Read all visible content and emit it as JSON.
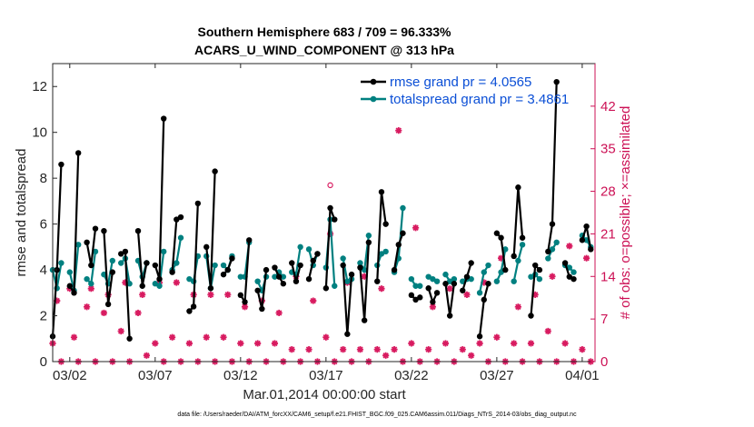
{
  "chart_data": {
    "type": "line",
    "title": "Southern Hemisphere 683 / 709 = 96.333%",
    "subtitle": "ACARS_U_WIND_COMPONENT @ 313 hPa",
    "xlabel": "Mar.01,2014 00:00:00 start",
    "ylabel": "rmse and totalspread",
    "ylabel_right": "# of obs: o=possible; ×=assimilated",
    "footnote": "data file: /Users/raeder/DAI/ATM_forcXX/CAM6_setup/f.e21.FHIST_BGC.f09_025.CAM6assim.011/Diags_NTrS_2014-03/obs_diag_output.nc",
    "xlim": [
      0,
      31.75
    ],
    "ylim": [
      0,
      13
    ],
    "ylim_right": [
      0,
      49
    ],
    "x_ticks": [
      1,
      6,
      11,
      16,
      21,
      26,
      31
    ],
    "x_tick_labels": [
      "03/02",
      "03/07",
      "03/12",
      "03/17",
      "03/22",
      "03/27",
      "04/01"
    ],
    "y_ticks": [
      0,
      2,
      4,
      6,
      8,
      10,
      12
    ],
    "y_ticks_right": [
      0,
      7,
      14,
      21,
      28,
      35,
      42
    ],
    "legend_position": "top-right",
    "colors": {
      "rmse": "#000000",
      "spread": "#008080",
      "obs": "#d81b60"
    },
    "series": [
      {
        "name": "rmse grand pr = 4.0565",
        "segments": [
          {
            "x": [
              0.0,
              0.25,
              0.5
            ],
            "y": [
              1.1,
              4.0,
              8.6
            ]
          },
          {
            "x": [
              1.0,
              1.25,
              1.5
            ],
            "y": [
              3.3,
              3.0,
              9.1
            ]
          },
          {
            "x": [
              2.0,
              2.25,
              2.5
            ],
            "y": [
              5.2,
              4.2,
              5.8
            ]
          },
          {
            "x": [
              3.0,
              3.25,
              3.5
            ],
            "y": [
              5.7,
              2.5,
              3.9
            ]
          },
          {
            "x": [
              4.0,
              4.25,
              4.5
            ],
            "y": [
              4.7,
              4.8,
              1.0
            ]
          },
          {
            "x": [
              5.0,
              5.25,
              5.5
            ],
            "y": [
              5.7,
              3.3,
              4.3
            ]
          },
          {
            "x": [
              6.0,
              6.25,
              6.5
            ],
            "y": [
              4.2,
              3.6,
              10.6
            ]
          },
          {
            "x": [
              7.0,
              7.25,
              7.5
            ],
            "y": [
              3.9,
              6.2,
              6.3
            ]
          },
          {
            "x": [
              8.0,
              8.25,
              8.5
            ],
            "y": [
              2.2,
              2.4,
              6.9
            ]
          },
          {
            "x": [
              9.0,
              9.25,
              9.5
            ],
            "y": [
              5.0,
              3.2,
              8.3
            ]
          },
          {
            "x": [
              10.0,
              10.25,
              10.5
            ],
            "y": [
              3.8,
              4.0,
              4.5
            ]
          },
          {
            "x": [
              11.0,
              11.25,
              11.5
            ],
            "y": [
              2.9,
              2.6,
              5.3
            ]
          },
          {
            "x": [
              12.0,
              12.25,
              12.5
            ],
            "y": [
              3.1,
              2.3,
              4.0
            ]
          },
          {
            "x": [
              13.0,
              13.25,
              13.5
            ],
            "y": [
              4.1,
              3.7,
              3.4
            ]
          },
          {
            "x": [
              14.0,
              14.25,
              14.5
            ],
            "y": [
              4.3,
              3.5,
              4.2
            ]
          },
          {
            "x": [
              15.0,
              15.25,
              15.5
            ],
            "y": [
              3.6,
              4.4,
              4.7
            ]
          },
          {
            "x": [
              16.0,
              16.25,
              16.5
            ],
            "y": [
              3.2,
              6.7,
              6.2
            ]
          },
          {
            "x": [
              17.0,
              17.25,
              17.5
            ],
            "y": [
              4.2,
              1.2,
              3.8
            ]
          },
          {
            "x": [
              18.0,
              18.25,
              18.5
            ],
            "y": [
              4.1,
              1.8,
              5.2
            ]
          },
          {
            "x": [
              19.0,
              19.25,
              19.5
            ],
            "y": [
              3.5,
              7.4,
              6.0
            ]
          },
          {
            "x": [
              20.0,
              20.25,
              20.5
            ],
            "y": [
              4.0,
              5.1,
              5.6
            ]
          },
          {
            "x": [
              21.0,
              21.25,
              21.5
            ],
            "y": [
              2.9,
              2.7,
              2.8
            ]
          },
          {
            "x": [
              22.0,
              22.25,
              22.5
            ],
            "y": [
              3.2,
              2.6,
              3.0
            ]
          },
          {
            "x": [
              23.0,
              23.25,
              23.5
            ],
            "y": [
              3.4,
              2.0,
              3.4
            ]
          },
          {
            "x": [
              24.0,
              24.25,
              24.5
            ],
            "y": [
              3.1,
              3.7,
              4.3
            ]
          },
          {
            "x": [
              25.0,
              25.25,
              25.5
            ],
            "y": [
              1.1,
              2.7,
              3.4
            ]
          },
          {
            "x": [
              26.0,
              26.25,
              26.5
            ],
            "y": [
              5.6,
              5.4,
              4.0
            ]
          },
          {
            "x": [
              27.0,
              27.25,
              27.5
            ],
            "y": [
              4.6,
              7.6,
              5.4
            ]
          },
          {
            "x": [
              28.0,
              28.25,
              28.5
            ],
            "y": [
              2.0,
              4.2,
              4.0
            ]
          },
          {
            "x": [
              29.0,
              29.25,
              29.5
            ],
            "y": [
              4.8,
              6.0,
              12.2
            ]
          },
          {
            "x": [
              30.0,
              30.25,
              30.5
            ],
            "y": [
              4.3,
              3.7,
              3.6
            ]
          },
          {
            "x": [
              31.0,
              31.25,
              31.5
            ],
            "y": [
              5.3,
              5.9,
              4.9
            ]
          }
        ]
      },
      {
        "name": "totalspread grand pr = 3.4861",
        "segments": [
          {
            "x": [
              0.0,
              0.25,
              0.5
            ],
            "y": [
              4.0,
              3.2,
              4.3
            ]
          },
          {
            "x": [
              1.0,
              1.25,
              1.5
            ],
            "y": [
              3.9,
              3.1,
              5.1
            ]
          },
          {
            "x": [
              2.0,
              2.25,
              2.5
            ],
            "y": [
              3.6,
              3.4,
              4.8
            ]
          },
          {
            "x": [
              3.0,
              3.25,
              3.5
            ],
            "y": [
              3.8,
              3.4,
              4.4
            ]
          },
          {
            "x": [
              4.0,
              4.25,
              4.5
            ],
            "y": [
              4.3,
              4.5,
              3.4
            ]
          },
          {
            "x": [
              5.0,
              5.25,
              5.5
            ],
            "y": [
              4.4,
              3.7,
              4.3
            ]
          },
          {
            "x": [
              6.0,
              6.25,
              6.5
            ],
            "y": [
              3.4,
              3.3,
              4.8
            ]
          },
          {
            "x": [
              7.0,
              7.25,
              7.5
            ],
            "y": [
              4.0,
              4.3,
              5.4
            ]
          },
          {
            "x": [
              8.0,
              8.25,
              8.5
            ],
            "y": [
              3.6,
              3.5,
              4.6
            ]
          },
          {
            "x": [
              9.0,
              9.25,
              9.5
            ],
            "y": [
              4.6,
              3.2,
              4.2
            ]
          },
          {
            "x": [
              10.0,
              10.25,
              10.5
            ],
            "y": [
              4.2,
              4.0,
              4.6
            ]
          },
          {
            "x": [
              11.0,
              11.25,
              11.5
            ],
            "y": [
              3.7,
              3.7,
              5.2
            ]
          },
          {
            "x": [
              12.0,
              12.25,
              12.5
            ],
            "y": [
              3.5,
              3.1,
              3.7
            ]
          },
          {
            "x": [
              13.0,
              13.25,
              13.5
            ],
            "y": [
              3.7,
              3.9,
              3.7
            ]
          },
          {
            "x": [
              14.0,
              14.25,
              14.5
            ],
            "y": [
              3.9,
              3.8,
              5.0
            ]
          },
          {
            "x": [
              15.0,
              15.25,
              15.5
            ],
            "y": [
              4.9,
              4.2,
              4.7
            ]
          },
          {
            "x": [
              16.0,
              16.25,
              16.5
            ],
            "y": [
              4.1,
              6.2,
              3.3
            ]
          },
          {
            "x": [
              17.0,
              17.25,
              17.5
            ],
            "y": [
              4.5,
              3.5,
              3.6
            ]
          },
          {
            "x": [
              18.0,
              18.25,
              18.5
            ],
            "y": [
              4.3,
              4.0,
              5.5
            ]
          },
          {
            "x": [
              19.0,
              19.25,
              19.5
            ],
            "y": [
              4.2,
              4.7,
              4.8
            ]
          },
          {
            "x": [
              20.0,
              20.25,
              20.5
            ],
            "y": [
              3.9,
              4.5,
              6.7
            ]
          },
          {
            "x": [
              21.0,
              21.25,
              21.5
            ],
            "y": [
              3.6,
              3.3,
              3.3
            ]
          },
          {
            "x": [
              22.0,
              22.25,
              22.5
            ],
            "y": [
              3.7,
              3.6,
              3.5
            ]
          },
          {
            "x": [
              23.0,
              23.25,
              23.5
            ],
            "y": [
              3.8,
              3.5,
              3.6
            ]
          },
          {
            "x": [
              24.0,
              24.25,
              24.5
            ],
            "y": [
              3.5,
              3.6,
              3.6
            ]
          },
          {
            "x": [
              25.0,
              25.25,
              25.5
            ],
            "y": [
              3.0,
              3.9,
              4.2
            ]
          },
          {
            "x": [
              26.0,
              26.25,
              26.5
            ],
            "y": [
              3.5,
              3.9,
              4.9
            ]
          },
          {
            "x": [
              27.0,
              27.25,
              27.5
            ],
            "y": [
              3.5,
              4.4,
              5.1
            ]
          },
          {
            "x": [
              28.0,
              28.25,
              28.5
            ],
            "y": [
              3.7,
              3.8,
              3.6
            ]
          },
          {
            "x": [
              29.0,
              29.25,
              29.5
            ],
            "y": [
              4.5,
              4.9,
              5.2
            ]
          },
          {
            "x": [
              30.0,
              30.25,
              30.5
            ],
            "y": [
              4.2,
              4.1,
              3.9
            ]
          },
          {
            "x": [
              31.0,
              31.25,
              31.5
            ],
            "y": [
              5.5,
              5.3,
              5.0
            ]
          }
        ]
      }
    ],
    "obs_counts": {
      "x": [
        0.0,
        0.25,
        0.5,
        1.0,
        1.25,
        1.5,
        2.0,
        2.25,
        2.5,
        3.0,
        3.25,
        3.5,
        4.0,
        4.25,
        4.5,
        5.0,
        5.25,
        5.5,
        6.0,
        6.25,
        6.5,
        7.0,
        7.25,
        7.5,
        8.0,
        8.25,
        8.5,
        9.0,
        9.25,
        9.5,
        10.0,
        10.25,
        10.5,
        11.0,
        11.25,
        11.5,
        12.0,
        12.25,
        12.5,
        13.0,
        13.25,
        13.5,
        14.0,
        14.25,
        14.5,
        15.0,
        15.25,
        15.5,
        16.0,
        16.25,
        16.5,
        17.0,
        17.25,
        17.5,
        18.0,
        18.25,
        18.5,
        19.0,
        19.25,
        19.5,
        20.0,
        20.25,
        20.5,
        21.0,
        21.25,
        21.5,
        22.0,
        22.25,
        22.5,
        23.0,
        23.25,
        23.5,
        24.0,
        24.25,
        24.5,
        25.0,
        25.25,
        25.5,
        26.0,
        26.25,
        26.5,
        27.0,
        27.25,
        27.5,
        28.0,
        28.25,
        28.5,
        29.0,
        29.25,
        29.5,
        30.0,
        30.25,
        30.5,
        31.0,
        31.25,
        31.5
      ],
      "possible": [
        3,
        10,
        0,
        12,
        4,
        0,
        9,
        12,
        0,
        8,
        11,
        0,
        5,
        13,
        0,
        8,
        11,
        1,
        3,
        13,
        0,
        4,
        13,
        0,
        3,
        11,
        0,
        4,
        11,
        0,
        4,
        11,
        0,
        3,
        9,
        0,
        3,
        10,
        0,
        3,
        8,
        0,
        2,
        14,
        0,
        2,
        10,
        0,
        4,
        29,
        0,
        2,
        13,
        0,
        2,
        14,
        0,
        2,
        12,
        1,
        2,
        38,
        0,
        3,
        22,
        0,
        2,
        9,
        0,
        3,
        12,
        0,
        2,
        11,
        1,
        3,
        13,
        0,
        4,
        17,
        0,
        3,
        9,
        0,
        3,
        11,
        0,
        5,
        14,
        0,
        3,
        19,
        0,
        2,
        17,
        0
      ],
      "assimilated": [
        3,
        10,
        0,
        12,
        4,
        0,
        9,
        12,
        0,
        8,
        11,
        0,
        5,
        13,
        0,
        8,
        11,
        1,
        3,
        13,
        0,
        4,
        13,
        0,
        3,
        11,
        0,
        4,
        11,
        0,
        4,
        11,
        0,
        3,
        9,
        0,
        3,
        10,
        0,
        3,
        8,
        0,
        2,
        14,
        0,
        2,
        10,
        0,
        4,
        21,
        0,
        2,
        13,
        0,
        2,
        14,
        0,
        2,
        12,
        1,
        2,
        38,
        0,
        3,
        22,
        0,
        2,
        9,
        0,
        3,
        12,
        0,
        2,
        11,
        1,
        3,
        13,
        0,
        4,
        17,
        0,
        3,
        9,
        0,
        3,
        11,
        0,
        5,
        14,
        0,
        3,
        19,
        0,
        2,
        17,
        0
      ]
    }
  }
}
